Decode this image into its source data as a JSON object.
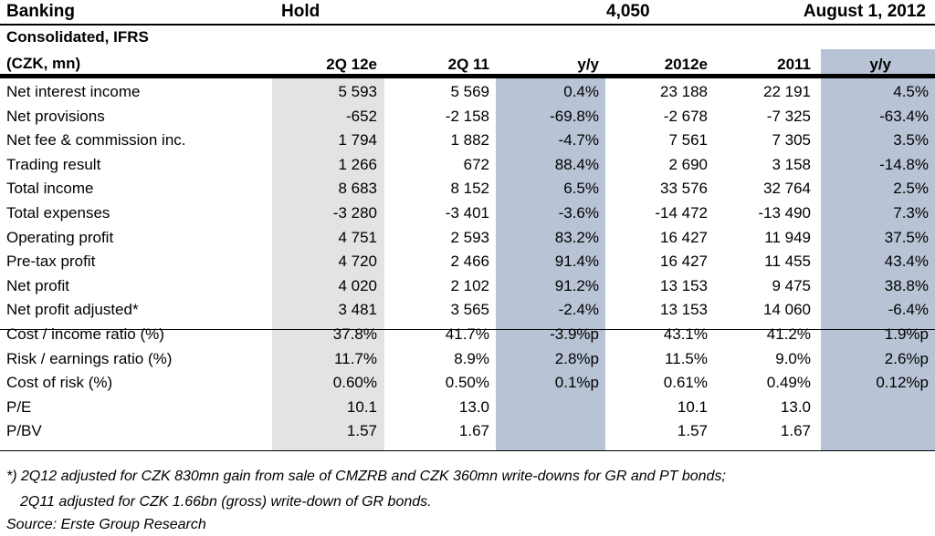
{
  "header": {
    "sector": "Banking",
    "rating": "Hold",
    "target": "4,050",
    "date": "August 1, 2012"
  },
  "subheader": {
    "line1": "Consolidated, IFRS",
    "line2": "(CZK, mn)"
  },
  "columns": [
    "2Q 12e",
    "2Q 11",
    "y/y",
    "2012e",
    "2011",
    "y/y"
  ],
  "rows": [
    {
      "label": "Net interest income",
      "values": [
        "5 593",
        "5 569",
        "0.4%",
        "23 188",
        "22 191",
        "4.5%"
      ]
    },
    {
      "label": "Net provisions",
      "values": [
        "-652",
        "-2 158",
        "-69.8%",
        "-2 678",
        "-7 325",
        "-63.4%"
      ]
    },
    {
      "label": "Net fee & commission inc.",
      "values": [
        "1 794",
        "1 882",
        "-4.7%",
        "7 561",
        "7 305",
        "3.5%"
      ]
    },
    {
      "label": "Trading result",
      "values": [
        "1 266",
        "672",
        "88.4%",
        "2 690",
        "3 158",
        "-14.8%"
      ]
    },
    {
      "label": "Total income",
      "values": [
        "8 683",
        "8 152",
        "6.5%",
        "33 576",
        "32 764",
        "2.5%"
      ]
    },
    {
      "label": "Total expenses",
      "values": [
        "-3 280",
        "-3 401",
        "-3.6%",
        "-14 472",
        "-13 490",
        "7.3%"
      ]
    },
    {
      "label": "Operating profit",
      "values": [
        "4 751",
        "2 593",
        "83.2%",
        "16 427",
        "11 949",
        "37.5%"
      ]
    },
    {
      "label": "Pre-tax profit",
      "values": [
        "4 720",
        "2 466",
        "91.4%",
        "16 427",
        "11 455",
        "43.4%"
      ]
    },
    {
      "label": "Net profit",
      "values": [
        "4 020",
        "2 102",
        "91.2%",
        "13 153",
        "9 475",
        "38.8%"
      ]
    },
    {
      "label": "Net profit adjusted*",
      "values": [
        "3 481",
        "3 565",
        "-2.4%",
        "13 153",
        "14 060",
        "-6.4%"
      ]
    },
    {
      "label": "Cost / income ratio (%)",
      "values": [
        "37.8%",
        "41.7%",
        "-3.9%p",
        "43.1%",
        "41.2%",
        "1.9%p"
      ]
    },
    {
      "label": "Risk / earnings ratio (%)",
      "values": [
        "11.7%",
        "8.9%",
        "2.8%p",
        "11.5%",
        "9.0%",
        "2.6%p"
      ]
    },
    {
      "label": "Cost of risk (%)",
      "values": [
        "0.60%",
        "0.50%",
        "0.1%p",
        "0.61%",
        "0.49%",
        "0.12%p"
      ]
    },
    {
      "label": "P/E",
      "values": [
        "10.1",
        "13.0",
        "",
        "10.1",
        "13.0",
        ""
      ]
    },
    {
      "label": "P/BV",
      "values": [
        "1.57",
        "1.67",
        "",
        "1.57",
        "1.67",
        ""
      ]
    }
  ],
  "footnotes": {
    "note1": "*) 2Q12 adjusted for CZK 830mn gain from sale of CMZRB and CZK 360mn write-downs for GR and PT bonds;",
    "note2": "2Q11 adjusted for CZK 1.66bn (gross) write-down of GR bonds.",
    "source": "Source: Erste Group Research"
  },
  "colors": {
    "grey_shade": "#e3e3e3",
    "blue_shade": "#b8c4d6"
  }
}
